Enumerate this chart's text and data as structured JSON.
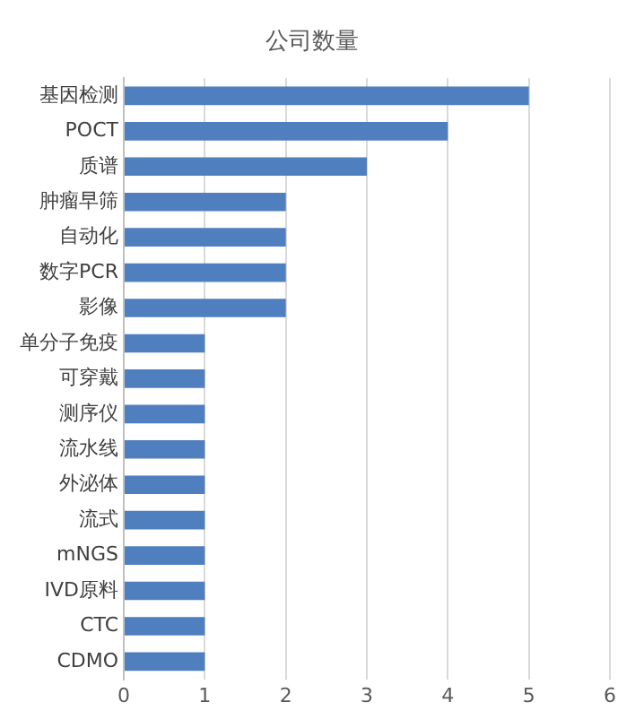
{
  "chart_data": {
    "type": "bar",
    "orientation": "horizontal",
    "title": "公司数量",
    "categories": [
      "基因检测",
      "POCT",
      "质谱",
      "肿瘤早筛",
      "自动化",
      "数字PCR",
      "影像",
      "单分子免疫",
      "可穿戴",
      "测序仪",
      "流水线",
      "外泌体",
      "流式",
      "mNGS",
      "IVD原料",
      "CTC",
      "CDMO"
    ],
    "values": [
      5,
      4,
      3,
      2,
      2,
      2,
      2,
      1,
      1,
      1,
      1,
      1,
      1,
      1,
      1,
      1,
      1
    ],
    "color": "#4f7fbf",
    "xlim": [
      0,
      6
    ],
    "xticks": [
      0,
      1,
      2,
      3,
      4,
      5,
      6
    ],
    "grid": "x",
    "legend": false
  }
}
